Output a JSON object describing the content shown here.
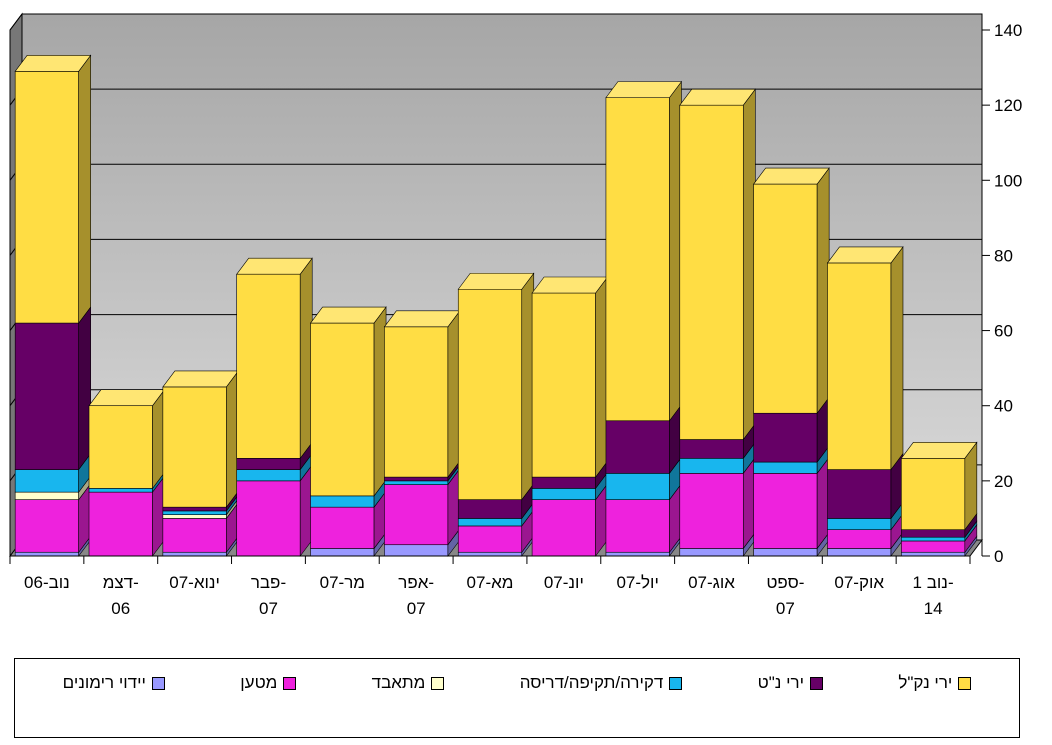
{
  "chart_data": {
    "type": "bar",
    "stacked": true,
    "three_d": true,
    "categories": [
      "נוב-06",
      "דצמ-06",
      "ינוא-07",
      "פבר-07",
      "מר-07",
      "אפר-07",
      "מא-07",
      "יונ-07",
      "יול-07",
      "אוג-07",
      "ספט-07",
      "אוק-07",
      "נוב 1-14"
    ],
    "category_lines": [
      [
        "נוב-06"
      ],
      [
        "דצמ-",
        "06"
      ],
      [
        "ינוא-07"
      ],
      [
        "פבר-",
        "07"
      ],
      [
        "מר-07"
      ],
      [
        "אפר-",
        "07"
      ],
      [
        "מא-07"
      ],
      [
        "יונ-07"
      ],
      [
        "יול-07"
      ],
      [
        "אוג-07"
      ],
      [
        "ספט-",
        "07"
      ],
      [
        "אוק-07"
      ],
      [
        "נוב 1-",
        "14"
      ]
    ],
    "series": [
      {
        "name": "יידוי רימונים",
        "color": "#9999ff",
        "values": [
          1,
          0,
          1,
          0,
          2,
          3,
          1,
          0,
          1,
          2,
          2,
          2,
          1
        ]
      },
      {
        "name": "מטען",
        "color": "#ee22dd",
        "values": [
          14,
          17,
          9,
          20,
          11,
          16,
          7,
          15,
          14,
          20,
          20,
          5,
          3
        ]
      },
      {
        "name": "מתאבד",
        "color": "#ffffcc",
        "values": [
          2,
          0,
          1,
          0,
          0,
          0,
          0,
          0,
          0,
          0,
          0,
          0,
          0
        ]
      },
      {
        "name": "דקירה/תקיפה/דריסה",
        "color": "#18b6ee",
        "values": [
          6,
          1,
          1,
          3,
          3,
          1,
          2,
          3,
          7,
          4,
          3,
          3,
          1
        ]
      },
      {
        "name": "ירי נ\"ט",
        "color": "#660066",
        "values": [
          39,
          0,
          1,
          3,
          0,
          1,
          5,
          3,
          14,
          5,
          13,
          13,
          2
        ]
      },
      {
        "name": "ירי נק\"ל",
        "color": "#ffdd44",
        "values": [
          67,
          22,
          32,
          49,
          46,
          40,
          56,
          49,
          86,
          89,
          61,
          55,
          19
        ]
      }
    ],
    "yticks": [
      0,
      20,
      40,
      60,
      80,
      100,
      120,
      140
    ],
    "ylim": [
      0,
      140
    ],
    "axis_side": "right",
    "grid": true,
    "legend_position": "bottom"
  }
}
